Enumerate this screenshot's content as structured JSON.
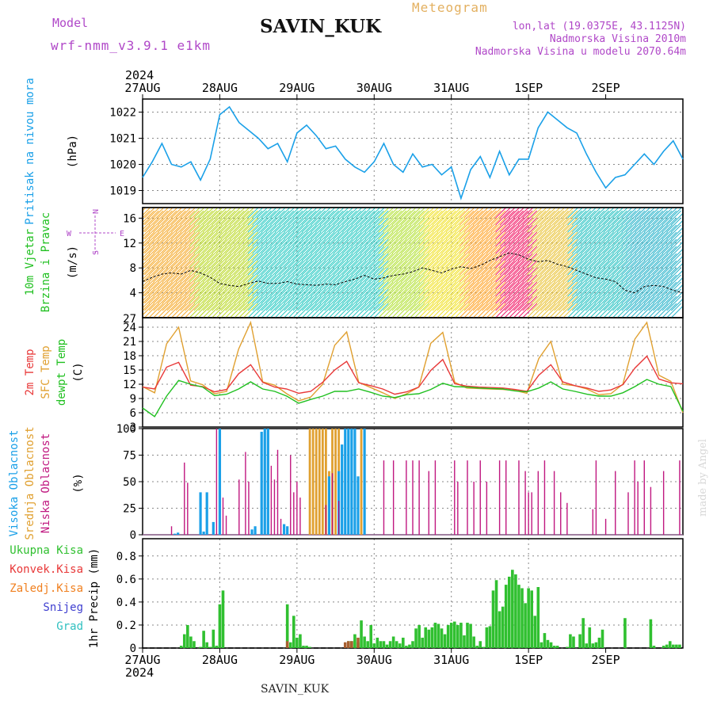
{
  "header": {
    "model_label": "Model",
    "model_name": "wrf-nmm_v3.9.1 e1km",
    "station": "SAVIN_KUK",
    "title": "Meteogram",
    "lonlat": "lon,lat (19.0375E, 43.1125N)",
    "altitude": "Nadmorska Visina 2010m",
    "model_altitude": "Nadmorska Visina u modelu 2070.64m",
    "footer_station": "SAVIN_KUK",
    "credit": "made by Angel"
  },
  "colors": {
    "pressure": "#1aa0e8",
    "temp2m": "#e83838",
    "sfc_temp": "#e0a030",
    "dewpt": "#20c020",
    "high_cloud": "#1aa0e8",
    "mid_cloud": "#e0a030",
    "low_cloud": "#c01880",
    "total_precip": "#30c030",
    "conv_precip": "#e83838",
    "frozen_precip": "#f08020",
    "snow": "#4040d0",
    "hail": "#30c0c0",
    "label_purple": "#b048c8"
  },
  "time_axis": {
    "year_top": "2024",
    "year_bottom": "2024",
    "ticks": [
      "27AUG",
      "28AUG",
      "29AUG",
      "30AUG",
      "31AUG",
      "1SEP",
      "2SEP"
    ]
  },
  "wind_compass": {
    "n": "N",
    "s": "S",
    "w": "W",
    "e": "E"
  },
  "chart_data": [
    {
      "type": "line",
      "panel": "pressure",
      "ylabel_left": "Pritisak na nivou mora",
      "unit": "(hPa)",
      "yticks": [
        1019,
        1020,
        1021,
        1022
      ],
      "ylim": [
        1018.5,
        1022.5
      ],
      "x_hours": [
        0,
        3,
        6,
        9,
        12,
        15,
        18,
        21,
        24,
        27,
        30,
        33,
        36,
        39,
        42,
        45,
        48,
        51,
        54,
        57,
        60,
        63,
        66,
        69,
        72,
        75,
        78,
        81,
        84,
        87,
        90,
        93,
        96,
        99,
        102,
        105,
        108,
        111,
        114,
        117,
        120,
        123,
        126,
        129,
        132,
        135,
        138,
        141,
        144,
        147,
        150,
        153,
        156,
        159,
        162,
        165,
        168
      ],
      "series": [
        {
          "values": [
            1019.5,
            1020.1,
            1020.8,
            1020.0,
            1019.9,
            1020.1,
            1019.4,
            1020.2,
            1021.9,
            1022.2,
            1021.6,
            1021.3,
            1021.0,
            1020.6,
            1020.8,
            1020.1,
            1021.2,
            1021.5,
            1021.1,
            1020.6,
            1020.7,
            1020.2,
            1019.9,
            1019.7,
            1020.1,
            1020.8,
            1020.0,
            1019.7,
            1020.4,
            1019.9,
            1020.0,
            1019.6,
            1019.9,
            1018.7,
            1019.8,
            1020.3,
            1019.5,
            1020.5,
            1019.6,
            1020.2,
            1020.2,
            1021.4,
            1022.0,
            1021.7,
            1021.4,
            1021.2,
            1020.4,
            1019.7,
            1019.1,
            1019.5,
            1019.6,
            1020.0,
            1020.4,
            1020.0,
            1020.5,
            1020.9,
            1020.2
          ]
        }
      ]
    },
    {
      "type": "line",
      "panel": "wind",
      "ylabel_left": [
        "10m Vjetar",
        "Brzina i Pravac"
      ],
      "unit": "(m/s)",
      "yticks": [
        4,
        8,
        12,
        16
      ],
      "ylim": [
        0,
        17.7
      ],
      "series": [
        {
          "name": "",
          "values": [
            5.8,
            6.5,
            7.0,
            7.2,
            7.0,
            7.6,
            7.2,
            6.5,
            5.5,
            5.2,
            5.0,
            5.5,
            5.9,
            5.5,
            5.5,
            5.8,
            5.4,
            5.3,
            5.2,
            5.4,
            5.3,
            5.8,
            6.2,
            6.8,
            6.2,
            6.4,
            6.8,
            7.0,
            7.4,
            8.0,
            7.6,
            7.2,
            7.8,
            8.2,
            7.9,
            8.4,
            9.2,
            9.8,
            10.4,
            10.1,
            9.4,
            9.0,
            9.2,
            8.6,
            8.2,
            7.6,
            7.0,
            6.4,
            6.2,
            5.8,
            4.4,
            4.0,
            5.0,
            5.2,
            5.0,
            4.4,
            4.0
          ]
        }
      ]
    },
    {
      "type": "line",
      "panel": "temperature",
      "ylabel_left": [
        "2m Temp",
        "SFC Temp",
        "dewpt Temp"
      ],
      "unit": "(C)",
      "yticks": [
        3,
        6,
        9,
        12,
        15,
        18,
        21,
        24
      ],
      "ylim": [
        3,
        26
      ],
      "series": [
        {
          "name": "2m Temp",
          "values": [
            11.4,
            11.0,
            15.6,
            16.6,
            11.8,
            11.5,
            10.4,
            10.9,
            14.2,
            16.1,
            12.4,
            11.4,
            11.0,
            10.1,
            10.5,
            12.4,
            15.0,
            16.8,
            12.3,
            11.7,
            11.0,
            9.9,
            10.4,
            11.4,
            14.9,
            17.2,
            12.1,
            11.6,
            11.4,
            11.3,
            11.2,
            10.9,
            10.5,
            13.9,
            16.1,
            12.5,
            11.7,
            11.2,
            10.5,
            10.8,
            11.9,
            15.4,
            17.9,
            13.1,
            12.3,
            12.1
          ]
        },
        {
          "name": "SFC Temp",
          "values": [
            11.5,
            10.2,
            20.5,
            24.0,
            12.7,
            11.9,
            10.0,
            10.5,
            19.4,
            25.0,
            12.5,
            11.8,
            10.0,
            8.5,
            9.3,
            12.0,
            20.2,
            23.0,
            12.4,
            11.3,
            10.2,
            9.0,
            10.0,
            11.4,
            20.6,
            22.9,
            12.4,
            11.2,
            11.1,
            11.0,
            10.9,
            10.7,
            10.1,
            17.4,
            21.0,
            12.0,
            11.7,
            11.0,
            9.8,
            10.0,
            12.0,
            21.5,
            25.0,
            13.9,
            12.6,
            6.0
          ]
        },
        {
          "name": "dewpt Temp",
          "values": [
            7.0,
            5.2,
            9.5,
            12.8,
            12.0,
            11.4,
            9.6,
            9.9,
            11.0,
            12.5,
            11.0,
            10.5,
            9.5,
            8.0,
            8.8,
            9.5,
            10.5,
            10.5,
            11.0,
            10.3,
            9.5,
            9.2,
            9.8,
            10.0,
            10.9,
            12.2,
            11.5,
            11.4,
            11.2,
            11.1,
            11.0,
            10.6,
            10.4,
            11.2,
            12.5,
            11.0,
            10.5,
            9.9,
            9.5,
            9.5,
            10.2,
            11.5,
            13.0,
            12.0,
            11.5,
            6.3
          ]
        }
      ]
    },
    {
      "type": "bar",
      "panel": "cloud",
      "ylabel_left": [
        "Visoka Oblacnost",
        "Srednja Oblacnost",
        "Niska Oblacnost"
      ],
      "unit": "(%)",
      "yticks": [
        0,
        25,
        50,
        75,
        100
      ],
      "ylim": [
        0,
        100
      ],
      "series": [
        {
          "name": "Visoka Oblacnost",
          "hours": [
            10,
            11,
            18,
            19,
            20,
            22,
            24,
            34,
            35,
            37,
            38,
            39,
            44,
            45,
            58,
            61,
            62,
            63,
            64,
            65,
            66,
            67,
            69
          ],
          "values": [
            1,
            2,
            40,
            3,
            40,
            12,
            100,
            5,
            8,
            97,
            100,
            100,
            10,
            8,
            55,
            60,
            85,
            100,
            100,
            100,
            100,
            55,
            100
          ]
        },
        {
          "name": "Srednja Oblacnost",
          "hours": [
            52,
            53,
            54,
            55,
            56,
            57,
            58,
            59,
            60,
            61,
            68
          ],
          "values": [
            100,
            100,
            100,
            100,
            100,
            100,
            60,
            100,
            100,
            100,
            100
          ]
        },
        {
          "name": "Niska Oblacnost",
          "hours": [
            9,
            13,
            14,
            23,
            25,
            26,
            30,
            32,
            33,
            40,
            41,
            42,
            43,
            46,
            47,
            48,
            49,
            57,
            59,
            61,
            75,
            78,
            82,
            84,
            86,
            89,
            91,
            97,
            98,
            101,
            103,
            105,
            107,
            111,
            113,
            117,
            119,
            120,
            121,
            123,
            125,
            128,
            130,
            132,
            140,
            141,
            144,
            147,
            151,
            153,
            154,
            156,
            158,
            162,
            167
          ],
          "values": [
            8,
            68,
            49,
            100,
            35,
            18,
            52,
            78,
            50,
            65,
            52,
            80,
            15,
            75,
            40,
            50,
            35,
            28,
            58,
            32,
            70,
            70,
            70,
            70,
            70,
            60,
            70,
            70,
            50,
            70,
            50,
            70,
            50,
            70,
            70,
            70,
            60,
            40,
            40,
            60,
            70,
            60,
            40,
            30,
            24,
            70,
            15,
            60,
            40,
            70,
            50,
            70,
            45,
            60,
            70
          ]
        }
      ]
    },
    {
      "type": "bar",
      "panel": "precip",
      "ylabel_left": "1hr Precip",
      "unit": "(mm)",
      "legend": [
        "Ukupna Kisa",
        "Konvek.Kisa",
        "Zaledj.Kisa",
        "Snijeg",
        "Grad"
      ],
      "yticks": [
        0,
        0.2,
        0.4,
        0.6,
        0.8
      ],
      "ylim": [
        0,
        0.95
      ],
      "series": [
        {
          "name": "Ukupna Kisa",
          "hours": [
            12,
            13,
            14,
            15,
            16,
            18,
            19,
            20,
            21,
            22,
            23,
            24,
            25,
            45,
            46,
            47,
            48,
            49,
            50,
            51,
            52,
            64,
            65,
            66,
            67,
            68,
            69,
            70,
            71,
            72,
            73,
            74,
            75,
            76,
            77,
            78,
            79,
            80,
            81,
            82,
            83,
            84,
            85,
            86,
            87,
            88,
            89,
            90,
            91,
            92,
            93,
            94,
            95,
            96,
            97,
            98,
            99,
            100,
            101,
            102,
            103,
            104,
            105,
            106,
            107,
            108,
            109,
            110,
            111,
            112,
            113,
            114,
            115,
            116,
            117,
            118,
            119,
            120,
            121,
            122,
            123,
            124,
            125,
            126,
            127,
            128,
            129,
            132,
            133,
            134,
            136,
            137,
            138,
            139,
            140,
            141,
            142,
            143,
            150,
            158,
            159,
            162,
            163,
            164,
            165,
            166,
            167
          ],
          "values": [
            0.02,
            0.12,
            0.2,
            0.1,
            0.06,
            0.01,
            0.15,
            0.05,
            0.01,
            0.16,
            0.02,
            0.38,
            0.5,
            0.38,
            0.05,
            0.28,
            0.09,
            0.12,
            0.02,
            0.02,
            0.01,
            0.06,
            0.06,
            0.12,
            0.05,
            0.24,
            0.1,
            0.06,
            0.2,
            0.04,
            0.09,
            0.06,
            0.06,
            0.03,
            0.06,
            0.1,
            0.06,
            0.04,
            0.09,
            0.02,
            0.03,
            0.06,
            0.17,
            0.2,
            0.09,
            0.18,
            0.16,
            0.18,
            0.22,
            0.21,
            0.17,
            0.12,
            0.2,
            0.22,
            0.23,
            0.2,
            0.22,
            0.11,
            0.22,
            0.21,
            0.1,
            0.02,
            0.06,
            0.01,
            0.18,
            0.19,
            0.5,
            0.59,
            0.32,
            0.36,
            0.55,
            0.62,
            0.68,
            0.64,
            0.55,
            0.52,
            0.39,
            0.52,
            0.5,
            0.28,
            0.53,
            0.05,
            0.13,
            0.07,
            0.05,
            0.02,
            0.02,
            0.01,
            0.12,
            0.1,
            0.12,
            0.26,
            0.04,
            0.18,
            0.04,
            0.05,
            0.09,
            0.16,
            0.26,
            0.25,
            0.02,
            0.02,
            0.03,
            0.06,
            0.03,
            0.03,
            0.03
          ]
        },
        {
          "name": "Konvek.Kisa",
          "hours": [
            45,
            63,
            64,
            65,
            67
          ],
          "values": [
            0.06,
            0.05,
            0.06,
            0.06,
            0.09
          ]
        }
      ]
    }
  ]
}
